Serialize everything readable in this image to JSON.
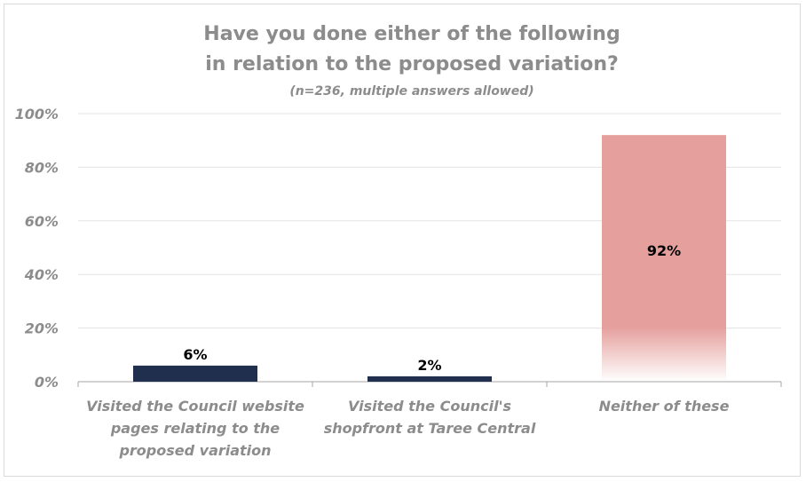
{
  "chart_data": {
    "type": "bar",
    "title": [
      "Have you done either of the following",
      "in relation to the proposed variation?"
    ],
    "subtitle": "(n=236, multiple answers allowed)",
    "categories": [
      [
        "Visited the Council website",
        "pages relating to the",
        "proposed variation"
      ],
      [
        "Visited the Council's",
        "shopfront at Taree Central"
      ],
      [
        "Neither of these"
      ]
    ],
    "values": [
      6,
      2,
      92
    ],
    "data_labels": [
      "6%",
      "2%",
      "92%"
    ],
    "ylim": [
      0,
      100
    ],
    "yticks": [
      0,
      20,
      40,
      60,
      80,
      100
    ],
    "ytick_labels": [
      "0%",
      "20%",
      "40%",
      "60%",
      "80%",
      "100%"
    ],
    "xlabel": "",
    "ylabel": "",
    "grid": true,
    "colors": [
      "#1f2f4d",
      "#1f2f4d",
      "#e5a09d"
    ]
  }
}
